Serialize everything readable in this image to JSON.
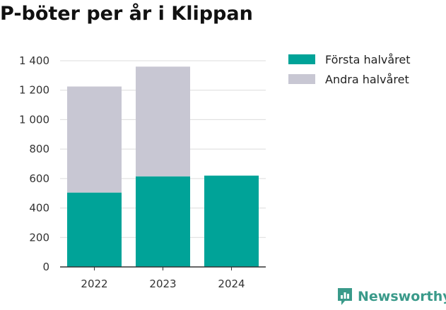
{
  "title": "P-böter per år i Klippan",
  "brand": {
    "name": "Newsworthy",
    "icon": "newsworthy-logo-icon",
    "color": "#3a9a8a"
  },
  "legend": [
    {
      "label": "Första halvåret",
      "color": "#00a398"
    },
    {
      "label": "Andra halvåret",
      "color": "#c8c7d3"
    }
  ],
  "chart_data": {
    "type": "bar",
    "stacked": true,
    "categories": [
      "2022",
      "2023",
      "2024"
    ],
    "series": [
      {
        "name": "Första halvåret",
        "values": [
          505,
          615,
          620
        ],
        "color": "#00a398"
      },
      {
        "name": "Andra halvåret",
        "values": [
          720,
          745,
          0
        ],
        "color": "#c8c7d3"
      }
    ],
    "ylim": [
      0,
      1400
    ],
    "yticks": [
      0,
      200,
      400,
      600,
      800,
      1000,
      1200,
      1400
    ],
    "ytick_labels": [
      "0",
      "200",
      "400",
      "600",
      "800",
      "1 000",
      "1 200",
      "1 400"
    ],
    "grid": true,
    "legend_position": "top-right"
  }
}
